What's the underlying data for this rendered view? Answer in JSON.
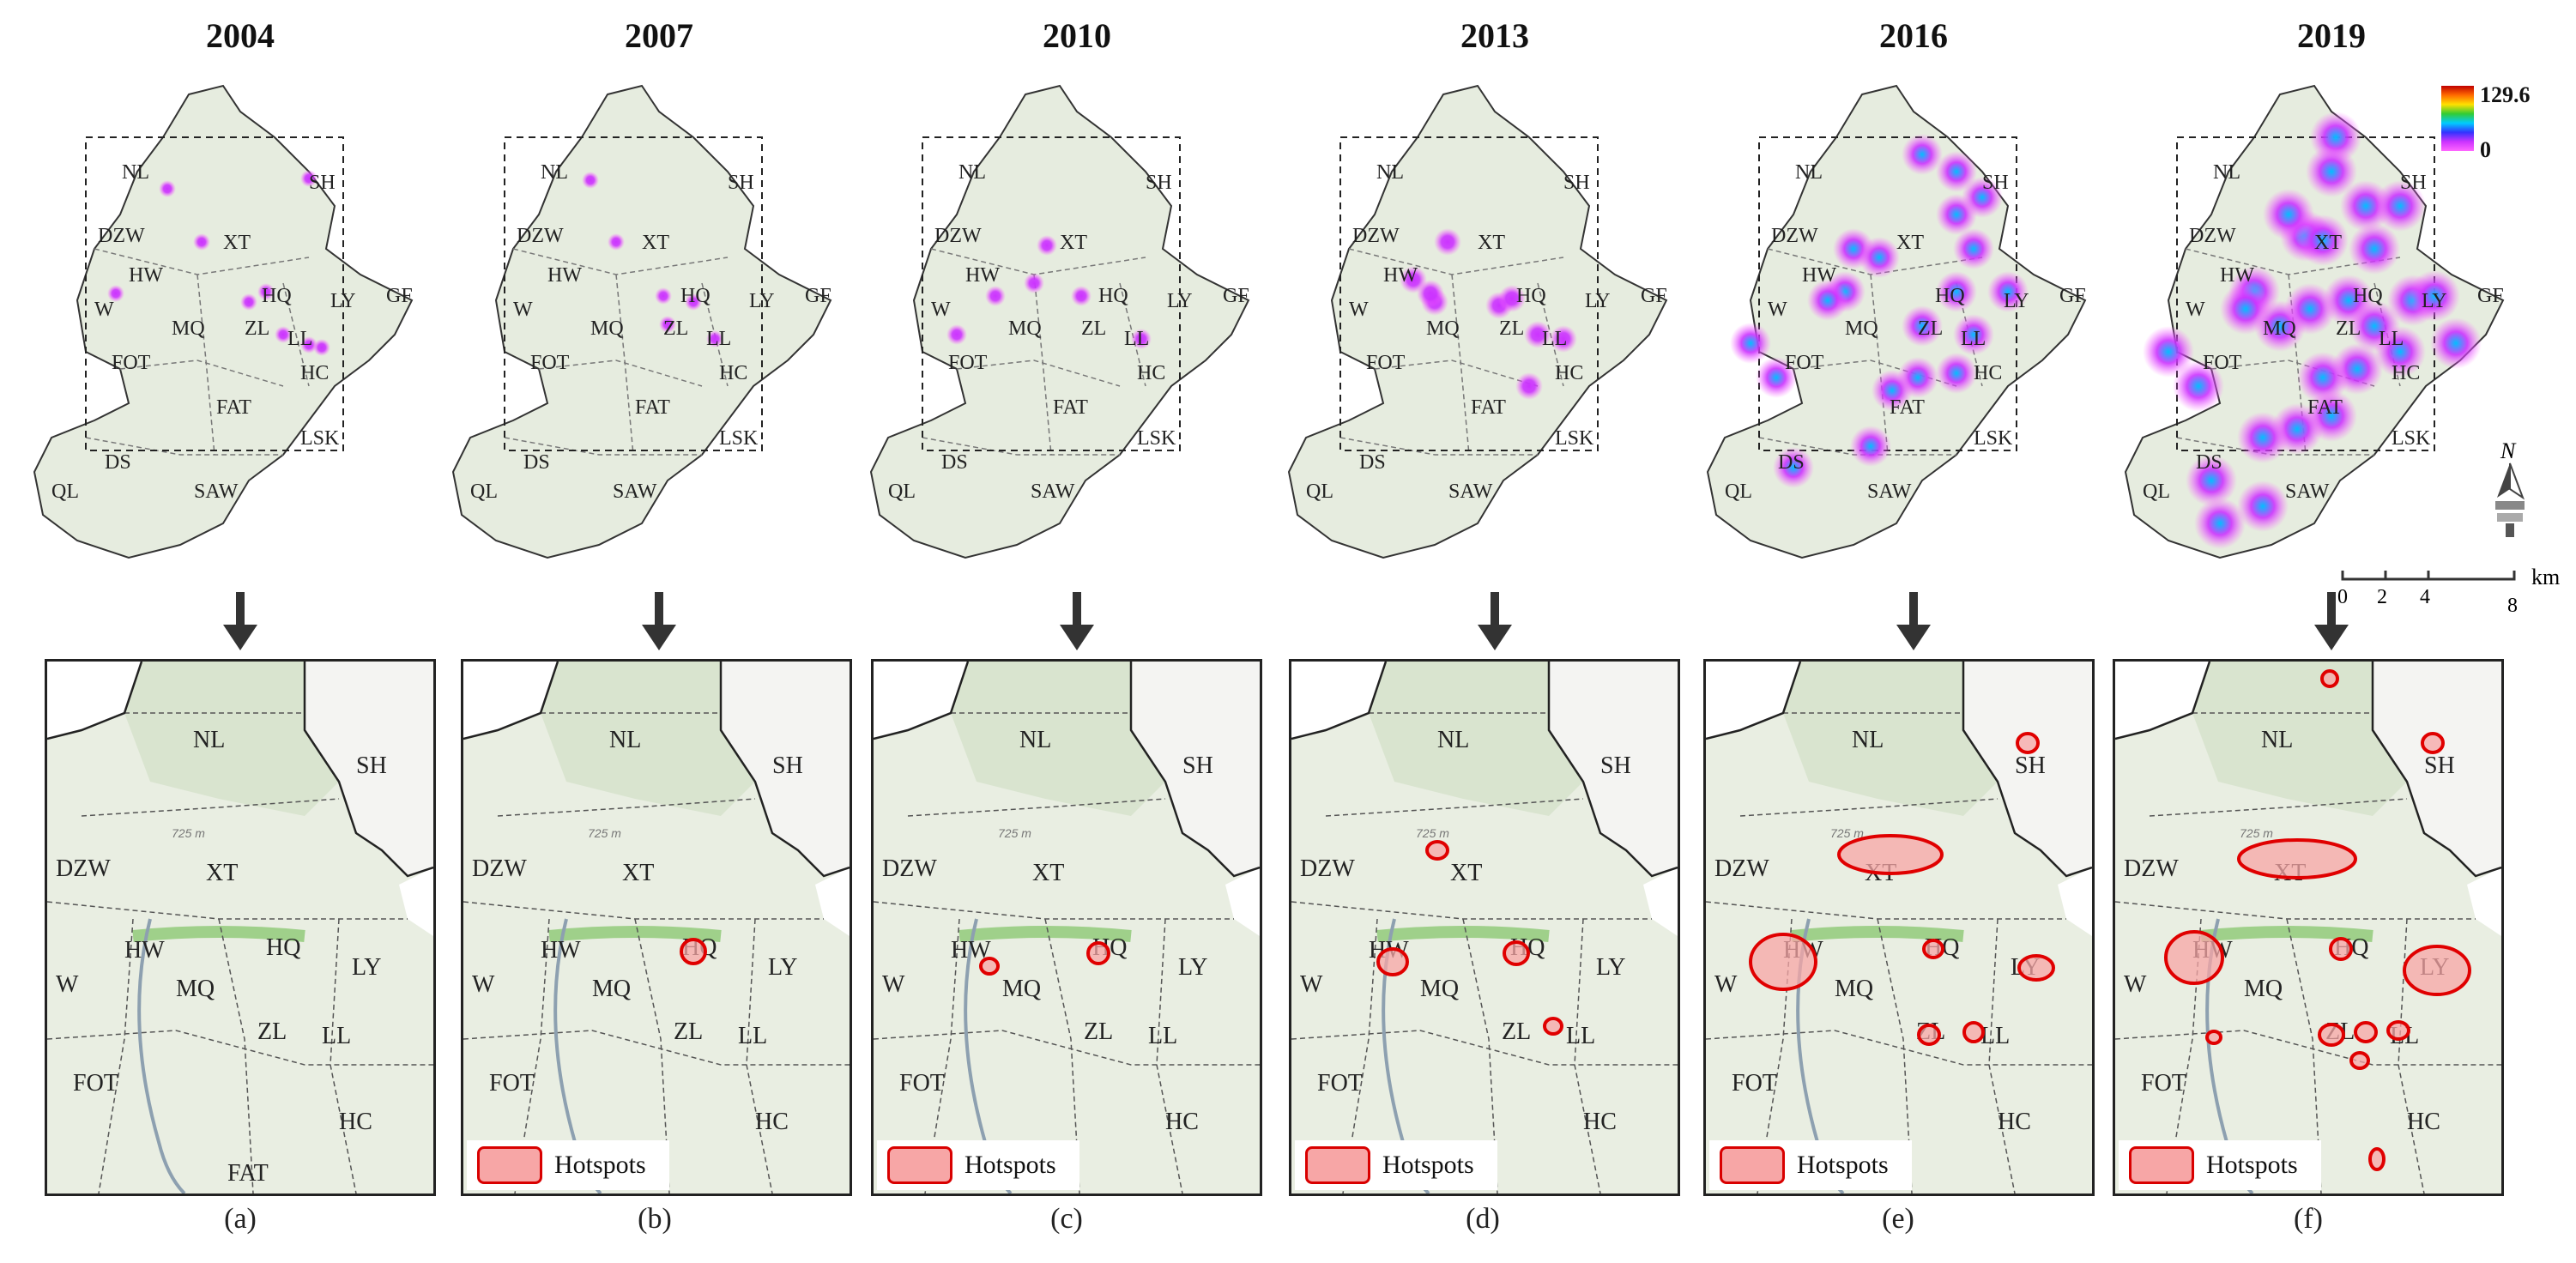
{
  "panels": [
    {
      "year": "2004",
      "caption": "(a)",
      "show_legend": false
    },
    {
      "year": "2007",
      "caption": "(b)",
      "show_legend": true
    },
    {
      "year": "2010",
      "caption": "(c)",
      "show_legend": true
    },
    {
      "year": "2013",
      "caption": "(d)",
      "show_legend": true
    },
    {
      "year": "2016",
      "caption": "(e)",
      "show_legend": true
    },
    {
      "year": "2019",
      "caption": "(f)",
      "show_legend": true
    }
  ],
  "overview_labels": [
    "NL",
    "SH",
    "DZW",
    "XT",
    "HW",
    "HQ",
    "LY",
    "GF",
    "W",
    "MQ",
    "ZL",
    "LL",
    "FOT",
    "HC",
    "FAT",
    "LSK",
    "DS",
    "QL",
    "SAW"
  ],
  "detail_labels": [
    "NL",
    "SH",
    "DZW",
    "XT",
    "HW",
    "HQ",
    "LY",
    "W",
    "MQ",
    "ZL",
    "LL",
    "FOT",
    "HC"
  ],
  "detail_labels_2004_extra": [
    "FAT"
  ],
  "contour_label": "725 m",
  "legend_hotspots_label": "Hotspots",
  "colorbar": {
    "max": "129.6",
    "min": "0"
  },
  "scalebar": {
    "ticks": [
      "0",
      "2",
      "4",
      "8"
    ],
    "unit": "km"
  },
  "north_label": "N",
  "colors": {
    "hotspot_edge": "#e00000",
    "hotspot_fill": "#f7a6a6",
    "map_bg": "#e9eee2",
    "kde_low": "#ff33ff"
  }
}
